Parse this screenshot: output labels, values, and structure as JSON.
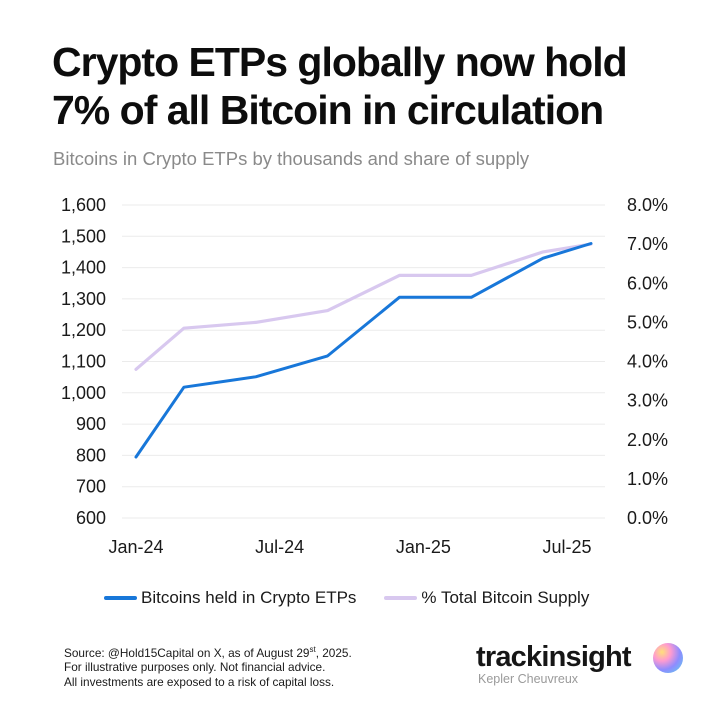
{
  "title_lines": [
    "Crypto ETPs globally now hold",
    "7% of all Bitcoin in circulation"
  ],
  "subtitle": "Bitcoins in Crypto ETPs by thousands and share of supply",
  "colors": {
    "primary": "#1877d9",
    "secondary": "#d8c8ef",
    "grid": "#ebebeb"
  },
  "chart_data": {
    "type": "line",
    "x": [
      "2024-01",
      "2024-03",
      "2024-06",
      "2024-09",
      "2024-12",
      "2025-03",
      "2025-06",
      "2025-08"
    ],
    "x_ticks": [
      "Jan-24",
      "Jul-24",
      "Jan-25",
      "Jul-25"
    ],
    "series": [
      {
        "name": "Bitcoins held in Crypto ETPs",
        "axis": "left",
        "color": "#1877d9",
        "values": [
          795,
          1018,
          1051,
          1118,
          1305,
          1305,
          1430,
          1477
        ]
      },
      {
        "name": "% Total Bitcoin Supply",
        "axis": "right",
        "color": "#d8c8ef",
        "values": [
          3.8,
          4.85,
          5.0,
          5.3,
          6.2,
          6.2,
          6.8,
          7.0
        ]
      }
    ],
    "y_left": {
      "ylim": [
        600,
        1600
      ],
      "ticks": [
        "600",
        "700",
        "800",
        "900",
        "1,000",
        "1,100",
        "1,200",
        "1,300",
        "1,400",
        "1,500",
        "1,600"
      ]
    },
    "y_right": {
      "ylim": [
        0,
        8
      ],
      "ticks": [
        "0.0%",
        "1.0%",
        "2.0%",
        "3.0%",
        "4.0%",
        "5.0%",
        "6.0%",
        "7.0%",
        "8.0%"
      ]
    },
    "grid": true,
    "legend": "bottom"
  },
  "legend_items": [
    "Bitcoins held in Crypto ETPs",
    "% Total Bitcoin Supply"
  ],
  "footer": {
    "source_prefix": "Source: @Hold15Capital on X, as of August 29",
    "source_sup": "st",
    "source_suffix": ", 2025.",
    "line2": "For illustrative purposes only. Not financial advice.",
    "line3": "All investments are exposed to a risk of capital loss."
  },
  "brand": {
    "name": "trackinsight",
    "sub": "Kepler Cheuvreux",
    "logo_icon": "trackinsight-logo-icon"
  }
}
